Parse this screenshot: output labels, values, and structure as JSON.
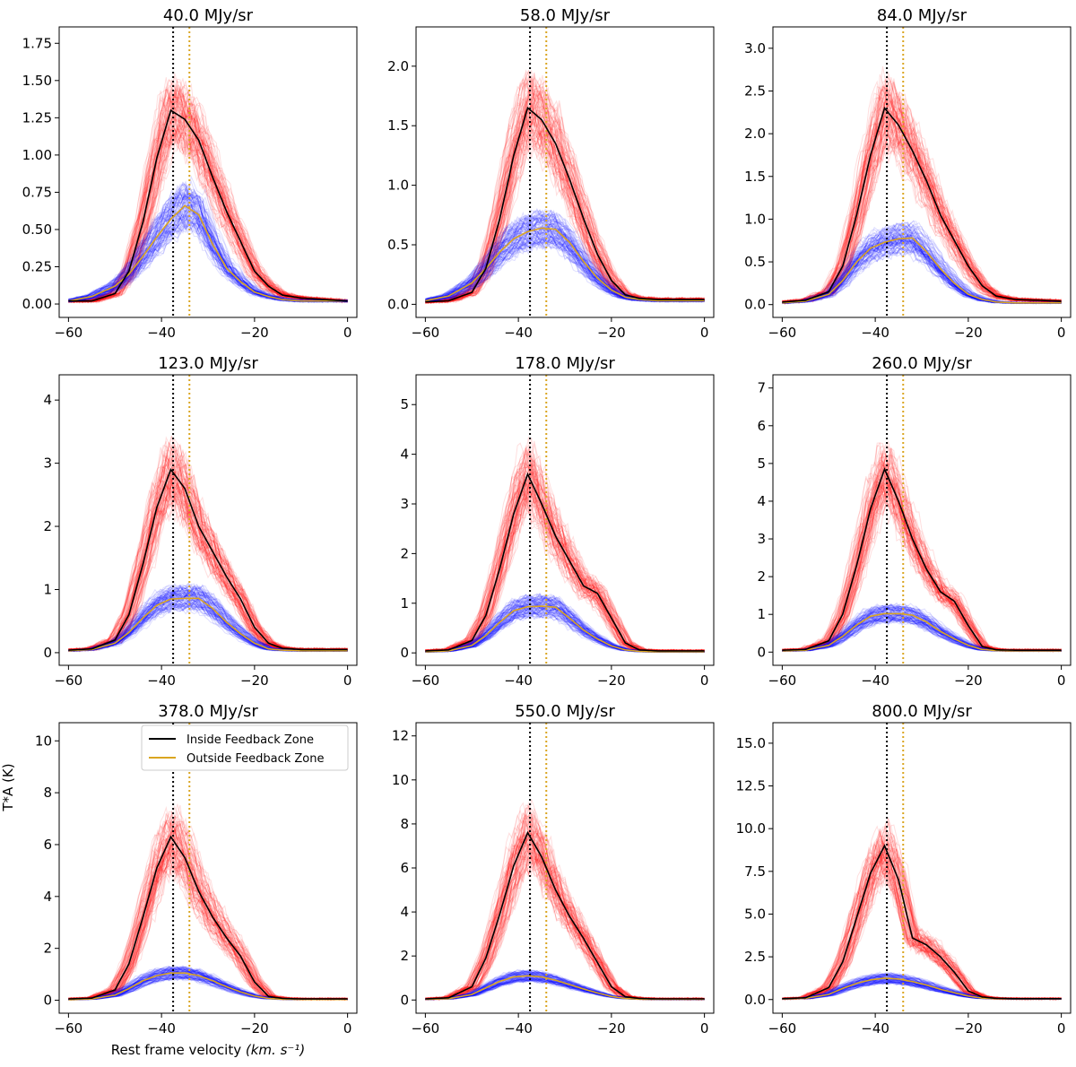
{
  "figure": {
    "xlabel": "Rest frame velocity",
    "xlabel_units": "(km. s⁻¹)",
    "ylabel": "T*A (K)",
    "legend": {
      "location": "upper-right",
      "panel": 6,
      "inside_label": "Inside Feedback Zone",
      "outside_label": "Outside Feedback Zone"
    },
    "colors": {
      "inside_mean": "#000000",
      "outside_mean": "#DAA520",
      "inside_spectra": "#FF0000",
      "outside_spectra": "#0000FF",
      "vline_inside": "#000000",
      "vline_outside": "#DAA520"
    }
  },
  "chart_data": [
    {
      "type": "line",
      "title": "40.0 MJy/sr",
      "xlim": [
        -62,
        2
      ],
      "ylim": [
        -0.09,
        1.86
      ],
      "xticks": [
        -60,
        -40,
        -20,
        0
      ],
      "xtick_labels": [
        "−60",
        "−40",
        "−20",
        "0"
      ],
      "yticks": [
        0,
        0.25,
        0.5,
        0.75,
        1.0,
        1.25,
        1.5,
        1.75
      ],
      "ytick_labels": [
        "0.00",
        "0.25",
        "0.50",
        "0.75",
        "1.00",
        "1.25",
        "1.50",
        "1.75"
      ],
      "vlines": [
        -37.5,
        -34.0
      ],
      "series": [
        {
          "name": "Inside Feedback Zone",
          "x": [
            -60,
            -55,
            -50,
            -47,
            -44,
            -41,
            -38,
            -35,
            -32,
            -29,
            -26,
            -23,
            -20,
            -17,
            -14,
            -10,
            -5,
            0
          ],
          "y": [
            0.02,
            0.02,
            0.07,
            0.22,
            0.55,
            0.98,
            1.3,
            1.24,
            1.1,
            0.85,
            0.62,
            0.42,
            0.22,
            0.12,
            0.06,
            0.04,
            0.03,
            0.02
          ]
        },
        {
          "name": "Outside Feedback Zone",
          "x": [
            -60,
            -55,
            -50,
            -47,
            -44,
            -41,
            -38,
            -35,
            -32,
            -29,
            -26,
            -23,
            -20,
            -17,
            -14,
            -10,
            -5,
            0
          ],
          "y": [
            0.02,
            0.05,
            0.12,
            0.2,
            0.32,
            0.45,
            0.57,
            0.66,
            0.6,
            0.4,
            0.24,
            0.15,
            0.08,
            0.05,
            0.03,
            0.02,
            0.02,
            0.02
          ]
        }
      ]
    },
    {
      "type": "line",
      "title": "58.0 MJy/sr",
      "xlim": [
        -62,
        2
      ],
      "ylim": [
        -0.11,
        2.33
      ],
      "xticks": [
        -60,
        -40,
        -20,
        0
      ],
      "xtick_labels": [
        "−60",
        "−40",
        "−20",
        "0"
      ],
      "yticks": [
        0,
        0.5,
        1.0,
        1.5,
        2.0
      ],
      "ytick_labels": [
        "0.0",
        "0.5",
        "1.0",
        "1.5",
        "2.0"
      ],
      "vlines": [
        -37.5,
        -34.0
      ],
      "series": [
        {
          "name": "Inside Feedback Zone",
          "x": [
            -60,
            -55,
            -50,
            -47,
            -44,
            -41,
            -38,
            -35,
            -32,
            -29,
            -26,
            -23,
            -20,
            -17,
            -14,
            -10,
            -5,
            0
          ],
          "y": [
            0.02,
            0.03,
            0.1,
            0.3,
            0.72,
            1.25,
            1.65,
            1.55,
            1.35,
            1.05,
            0.72,
            0.42,
            0.2,
            0.08,
            0.05,
            0.04,
            0.04,
            0.04
          ]
        },
        {
          "name": "Outside Feedback Zone",
          "x": [
            -60,
            -55,
            -50,
            -47,
            -44,
            -41,
            -38,
            -35,
            -32,
            -29,
            -26,
            -23,
            -20,
            -17,
            -14,
            -10,
            -5,
            0
          ],
          "y": [
            0.03,
            0.07,
            0.18,
            0.3,
            0.44,
            0.55,
            0.61,
            0.64,
            0.63,
            0.52,
            0.36,
            0.22,
            0.12,
            0.06,
            0.04,
            0.03,
            0.03,
            0.03
          ]
        }
      ]
    },
    {
      "type": "line",
      "title": "84.0 MJy/sr",
      "xlim": [
        -62,
        2
      ],
      "ylim": [
        -0.15,
        3.25
      ],
      "xticks": [
        -60,
        -40,
        -20,
        0
      ],
      "xtick_labels": [
        "−60",
        "−40",
        "−20",
        "0"
      ],
      "yticks": [
        0,
        0.5,
        1.0,
        1.5,
        2.0,
        2.5,
        3.0
      ],
      "ytick_labels": [
        "0.0",
        "0.5",
        "1.0",
        "1.5",
        "2.0",
        "2.5",
        "3.0"
      ],
      "vlines": [
        -37.5,
        -34.0
      ],
      "series": [
        {
          "name": "Inside Feedback Zone",
          "x": [
            -60,
            -55,
            -50,
            -47,
            -44,
            -41,
            -38,
            -35,
            -32,
            -29,
            -26,
            -23,
            -20,
            -17,
            -14,
            -10,
            -5,
            0
          ],
          "y": [
            0.03,
            0.05,
            0.15,
            0.45,
            1.05,
            1.75,
            2.3,
            2.1,
            1.8,
            1.45,
            1.05,
            0.75,
            0.45,
            0.22,
            0.1,
            0.06,
            0.05,
            0.04
          ]
        },
        {
          "name": "Outside Feedback Zone",
          "x": [
            -60,
            -55,
            -50,
            -47,
            -44,
            -41,
            -38,
            -35,
            -32,
            -29,
            -26,
            -23,
            -20,
            -17,
            -14,
            -10,
            -5,
            0
          ],
          "y": [
            0.02,
            0.04,
            0.12,
            0.28,
            0.5,
            0.66,
            0.73,
            0.77,
            0.78,
            0.62,
            0.42,
            0.25,
            0.12,
            0.06,
            0.03,
            0.02,
            0.02,
            0.02
          ]
        }
      ]
    },
    {
      "type": "line",
      "title": "123.0 MJy/sr",
      "xlim": [
        -62,
        2
      ],
      "ylim": [
        -0.2,
        4.4
      ],
      "xticks": [
        -60,
        -40,
        -20,
        0
      ],
      "xtick_labels": [
        "−60",
        "−40",
        "−20",
        "0"
      ],
      "yticks": [
        0,
        1,
        2,
        3,
        4
      ],
      "ytick_labels": [
        "0",
        "1",
        "2",
        "3",
        "4"
      ],
      "vlines": [
        -37.5,
        -34.0
      ],
      "series": [
        {
          "name": "Inside Feedback Zone",
          "x": [
            -60,
            -55,
            -50,
            -47,
            -44,
            -41,
            -38,
            -35,
            -32,
            -29,
            -26,
            -23,
            -20,
            -17,
            -14,
            -10,
            -5,
            0
          ],
          "y": [
            0.04,
            0.06,
            0.2,
            0.6,
            1.4,
            2.3,
            2.9,
            2.6,
            2.0,
            1.6,
            1.2,
            0.85,
            0.4,
            0.15,
            0.07,
            0.05,
            0.05,
            0.05
          ]
        },
        {
          "name": "Outside Feedback Zone",
          "x": [
            -60,
            -55,
            -50,
            -47,
            -44,
            -41,
            -38,
            -35,
            -32,
            -29,
            -26,
            -23,
            -20,
            -17,
            -14,
            -10,
            -5,
            0
          ],
          "y": [
            0.03,
            0.05,
            0.15,
            0.32,
            0.55,
            0.75,
            0.85,
            0.86,
            0.86,
            0.7,
            0.48,
            0.3,
            0.15,
            0.06,
            0.04,
            0.03,
            0.03,
            0.03
          ]
        }
      ]
    },
    {
      "type": "line",
      "title": "178.0 MJy/sr",
      "xlim": [
        -62,
        2
      ],
      "ylim": [
        -0.25,
        5.6
      ],
      "xticks": [
        -60,
        -40,
        -20,
        0
      ],
      "xtick_labels": [
        "−60",
        "−40",
        "−20",
        "0"
      ],
      "yticks": [
        0,
        1,
        2,
        3,
        4,
        5
      ],
      "ytick_labels": [
        "0",
        "1",
        "2",
        "3",
        "4",
        "5"
      ],
      "vlines": [
        -37.5,
        -34.0
      ],
      "series": [
        {
          "name": "Inside Feedback Zone",
          "x": [
            -60,
            -55,
            -50,
            -47,
            -44,
            -41,
            -38,
            -35,
            -32,
            -29,
            -26,
            -23,
            -20,
            -17,
            -14,
            -10,
            -5,
            0
          ],
          "y": [
            0.04,
            0.06,
            0.25,
            0.75,
            1.7,
            2.8,
            3.6,
            3.0,
            2.35,
            1.85,
            1.35,
            1.2,
            0.7,
            0.2,
            0.06,
            0.04,
            0.04,
            0.04
          ]
        },
        {
          "name": "Outside Feedback Zone",
          "x": [
            -60,
            -55,
            -50,
            -47,
            -44,
            -41,
            -38,
            -35,
            -32,
            -29,
            -26,
            -23,
            -20,
            -17,
            -14,
            -10,
            -5,
            0
          ],
          "y": [
            0.02,
            0.04,
            0.15,
            0.35,
            0.62,
            0.85,
            0.93,
            0.94,
            0.92,
            0.7,
            0.46,
            0.28,
            0.14,
            0.06,
            0.03,
            0.02,
            0.02,
            0.02
          ]
        }
      ]
    },
    {
      "type": "line",
      "title": "260.0 MJy/sr",
      "xlim": [
        -62,
        2
      ],
      "ylim": [
        -0.35,
        7.35
      ],
      "xticks": [
        -60,
        -40,
        -20,
        0
      ],
      "xtick_labels": [
        "−60",
        "−40",
        "−20",
        "0"
      ],
      "yticks": [
        0,
        1,
        2,
        3,
        4,
        5,
        6,
        7
      ],
      "ytick_labels": [
        "0",
        "1",
        "2",
        "3",
        "4",
        "5",
        "6",
        "7"
      ],
      "vlines": [
        -37.5,
        -34.0
      ],
      "series": [
        {
          "name": "Inside Feedback Zone",
          "x": [
            -60,
            -55,
            -50,
            -47,
            -44,
            -41,
            -38,
            -35,
            -32,
            -29,
            -26,
            -23,
            -20,
            -17,
            -14,
            -10,
            -5,
            0
          ],
          "y": [
            0.05,
            0.07,
            0.3,
            1.0,
            2.3,
            3.8,
            4.85,
            4.0,
            3.0,
            2.2,
            1.6,
            1.35,
            0.7,
            0.15,
            0.06,
            0.05,
            0.05,
            0.05
          ]
        },
        {
          "name": "Outside Feedback Zone",
          "x": [
            -60,
            -55,
            -50,
            -47,
            -44,
            -41,
            -38,
            -35,
            -32,
            -29,
            -26,
            -23,
            -20,
            -17,
            -14,
            -10,
            -5,
            0
          ],
          "y": [
            0.03,
            0.05,
            0.18,
            0.42,
            0.72,
            0.95,
            1.02,
            1.02,
            0.98,
            0.8,
            0.55,
            0.35,
            0.18,
            0.07,
            0.04,
            0.03,
            0.03,
            0.03
          ]
        }
      ]
    },
    {
      "type": "line",
      "title": "378.0 MJy/sr",
      "xlim": [
        -62,
        2
      ],
      "ylim": [
        -0.5,
        10.7
      ],
      "xticks": [
        -60,
        -40,
        -20,
        0
      ],
      "xtick_labels": [
        "−60",
        "−40",
        "−20",
        "0"
      ],
      "yticks": [
        0,
        2,
        4,
        6,
        8,
        10
      ],
      "ytick_labels": [
        "0",
        "2",
        "4",
        "6",
        "8",
        "10"
      ],
      "vlines": [
        -37.5,
        -34.0
      ],
      "series": [
        {
          "name": "Inside Feedback Zone",
          "x": [
            -60,
            -55,
            -50,
            -47,
            -44,
            -41,
            -38,
            -35,
            -32,
            -29,
            -26,
            -23,
            -20,
            -17,
            -14,
            -10,
            -5,
            0
          ],
          "y": [
            0.05,
            0.08,
            0.4,
            1.4,
            3.2,
            5.1,
            6.3,
            5.5,
            4.2,
            3.2,
            2.4,
            1.7,
            0.7,
            0.15,
            0.07,
            0.05,
            0.05,
            0.05
          ]
        },
        {
          "name": "Outside Feedback Zone",
          "x": [
            -60,
            -55,
            -50,
            -47,
            -44,
            -41,
            -38,
            -35,
            -32,
            -29,
            -26,
            -23,
            -20,
            -17,
            -14,
            -10,
            -5,
            0
          ],
          "y": [
            0.02,
            0.05,
            0.2,
            0.45,
            0.75,
            0.95,
            1.05,
            1.05,
            0.95,
            0.75,
            0.52,
            0.32,
            0.16,
            0.07,
            0.04,
            0.03,
            0.03,
            0.03
          ]
        }
      ]
    },
    {
      "type": "line",
      "title": "550.0 MJy/sr",
      "xlim": [
        -62,
        2
      ],
      "ylim": [
        -0.6,
        12.6
      ],
      "xticks": [
        -60,
        -40,
        -20,
        0
      ],
      "xtick_labels": [
        "−60",
        "−40",
        "−20",
        "0"
      ],
      "yticks": [
        0,
        2,
        4,
        6,
        8,
        10,
        12
      ],
      "ytick_labels": [
        "0",
        "2",
        "4",
        "6",
        "8",
        "10",
        "12"
      ],
      "vlines": [
        -37.5,
        -34.0
      ],
      "series": [
        {
          "name": "Inside Feedback Zone",
          "x": [
            -60,
            -55,
            -50,
            -47,
            -44,
            -41,
            -38,
            -35,
            -32,
            -29,
            -26,
            -23,
            -20,
            -17,
            -14,
            -10,
            -5,
            0
          ],
          "y": [
            0.05,
            0.1,
            0.6,
            1.9,
            3.9,
            6.1,
            7.6,
            6.5,
            5.0,
            3.8,
            2.8,
            1.7,
            0.6,
            0.15,
            0.07,
            0.05,
            0.05,
            0.05
          ]
        },
        {
          "name": "Outside Feedback Zone",
          "x": [
            -60,
            -55,
            -50,
            -47,
            -44,
            -41,
            -38,
            -35,
            -32,
            -29,
            -26,
            -23,
            -20,
            -17,
            -14,
            -10,
            -5,
            0
          ],
          "y": [
            0.03,
            0.06,
            0.25,
            0.55,
            0.85,
            1.05,
            1.1,
            1.05,
            0.9,
            0.7,
            0.5,
            0.32,
            0.16,
            0.07,
            0.04,
            0.03,
            0.03,
            0.03
          ]
        }
      ]
    },
    {
      "type": "line",
      "title": "800.0 MJy/sr",
      "xlim": [
        -62,
        2
      ],
      "ylim": [
        -0.8,
        16.2
      ],
      "xticks": [
        -60,
        -40,
        -20,
        0
      ],
      "xtick_labels": [
        "−60",
        "−40",
        "−20",
        "0"
      ],
      "yticks": [
        0,
        2.5,
        5,
        7.5,
        10,
        12.5,
        15
      ],
      "ytick_labels": [
        "0.0",
        "2.5",
        "5.0",
        "7.5",
        "10.0",
        "12.5",
        "15.0"
      ],
      "vlines": [
        -37.5,
        -34.0
      ],
      "series": [
        {
          "name": "Inside Feedback Zone",
          "x": [
            -60,
            -55,
            -50,
            -47,
            -44,
            -41,
            -38,
            -35,
            -32,
            -29,
            -26,
            -23,
            -20,
            -17,
            -14,
            -10,
            -5,
            0
          ],
          "y": [
            0.05,
            0.1,
            0.7,
            2.2,
            4.8,
            7.4,
            9.0,
            7.0,
            3.6,
            3.2,
            2.5,
            1.6,
            0.5,
            0.15,
            0.07,
            0.05,
            0.05,
            0.05
          ]
        },
        {
          "name": "Outside Feedback Zone",
          "x": [
            -60,
            -55,
            -50,
            -47,
            -44,
            -41,
            -38,
            -35,
            -32,
            -29,
            -26,
            -23,
            -20,
            -17,
            -14,
            -10,
            -5,
            0
          ],
          "y": [
            0.03,
            0.07,
            0.3,
            0.65,
            0.95,
            1.15,
            1.25,
            1.2,
            1.05,
            0.85,
            0.6,
            0.4,
            0.2,
            0.08,
            0.05,
            0.04,
            0.04,
            0.04
          ]
        }
      ]
    }
  ]
}
